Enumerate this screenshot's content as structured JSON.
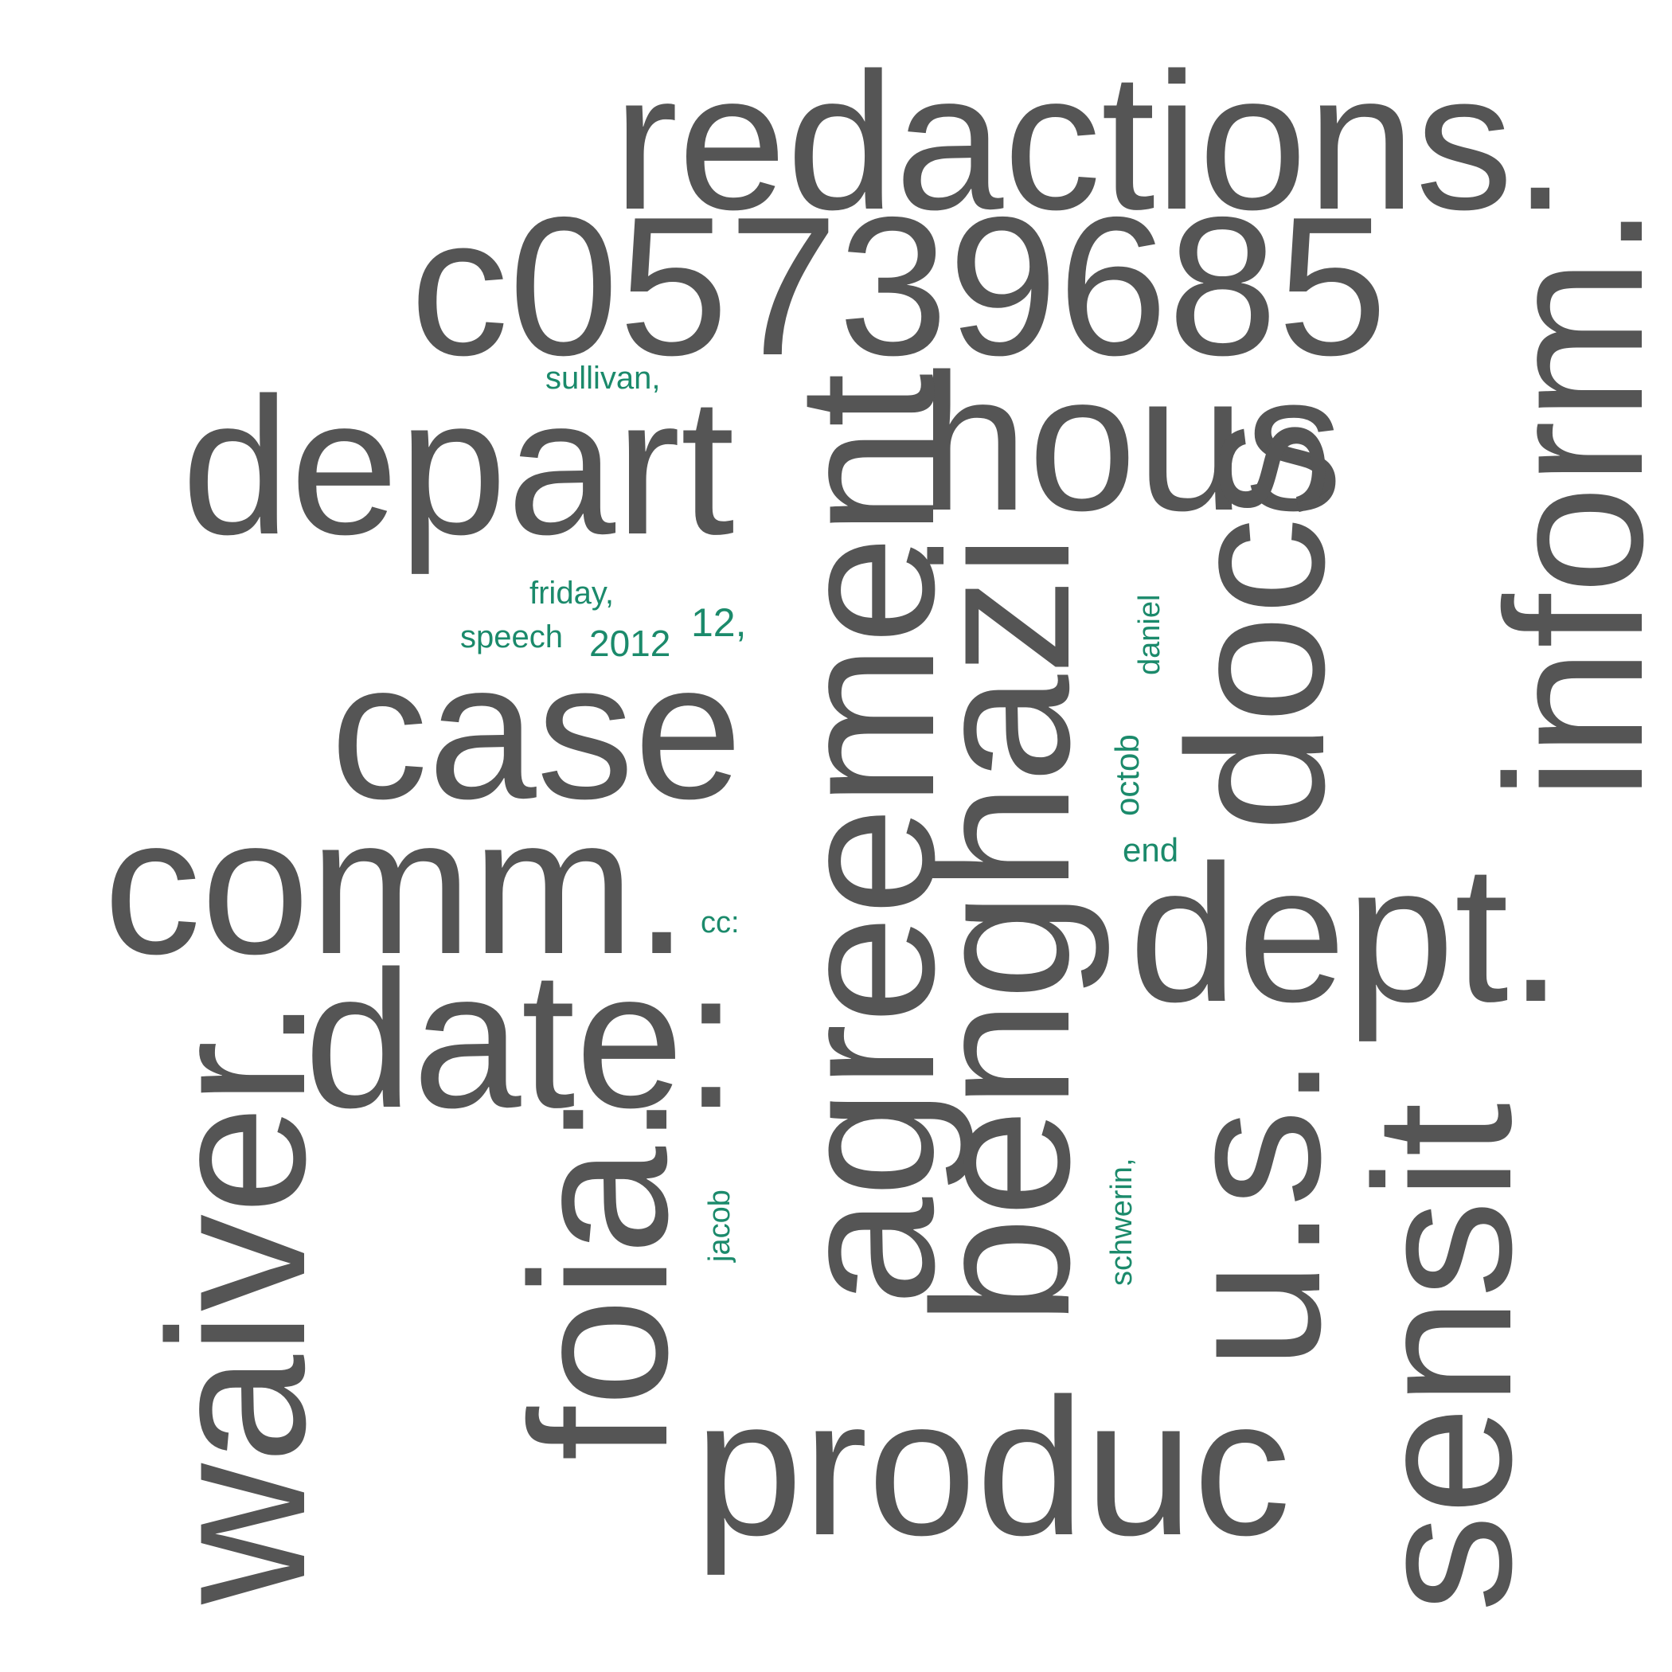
{
  "palette": {
    "primary": "#555555",
    "secondary": "#1b8a6b",
    "background": "#ffffff"
  },
  "words": {
    "redactions": "redactions.",
    "c05739685": "c05739685",
    "depart": "depart",
    "hous": "hous",
    "inform": "inform.",
    "agreement": "agreement",
    "benghazi": "benghazi",
    "docs": "docs",
    "case": "case",
    "comm": "comm.",
    "date": "date:",
    "dept": "dept.",
    "waiver": "waiver.",
    "foia": "foia:",
    "us": "u.s.",
    "sensit": "sensit",
    "produc": "produc",
    "sullivan": "sullivan,",
    "friday": "friday,",
    "twelve": "12,",
    "speech": "speech",
    "year": "2012",
    "daniel": "daniel",
    "octob": "octob",
    "end": "end",
    "cc": "cc:",
    "jacob": "jacob",
    "schwerin": "schwerin,"
  }
}
